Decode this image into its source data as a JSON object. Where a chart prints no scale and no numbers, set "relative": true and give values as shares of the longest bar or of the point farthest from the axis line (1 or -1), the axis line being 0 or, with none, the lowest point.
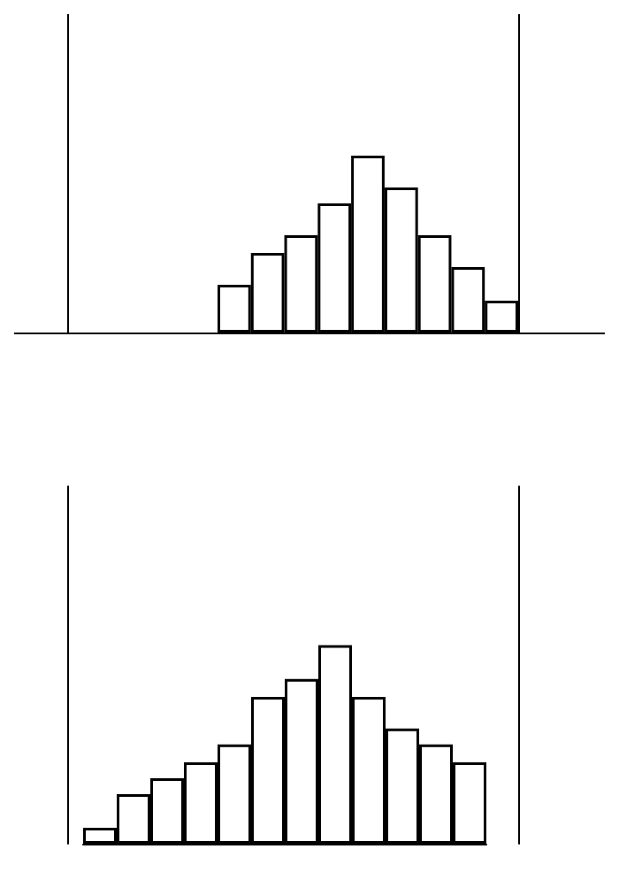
{
  "chart_data": [
    {
      "type": "bar",
      "relative": true,
      "categories": [
        null,
        null,
        null,
        null,
        null,
        null,
        null,
        null,
        null
      ],
      "values": [
        0.27,
        0.45,
        0.55,
        0.73,
        1,
        0.82,
        0.55,
        0.37,
        0.18
      ],
      "color": "#ffffff"
    },
    {
      "type": "bar",
      "relative": true,
      "categories": [
        null,
        null,
        null,
        null,
        null,
        null,
        null,
        null,
        null,
        null,
        null,
        null
      ],
      "values": [
        0.08,
        0.25,
        0.33,
        0.41,
        0.5,
        0.74,
        0.83,
        1,
        0.74,
        0.58,
        0.5,
        0.41
      ],
      "color": "#ffffff"
    }
  ]
}
